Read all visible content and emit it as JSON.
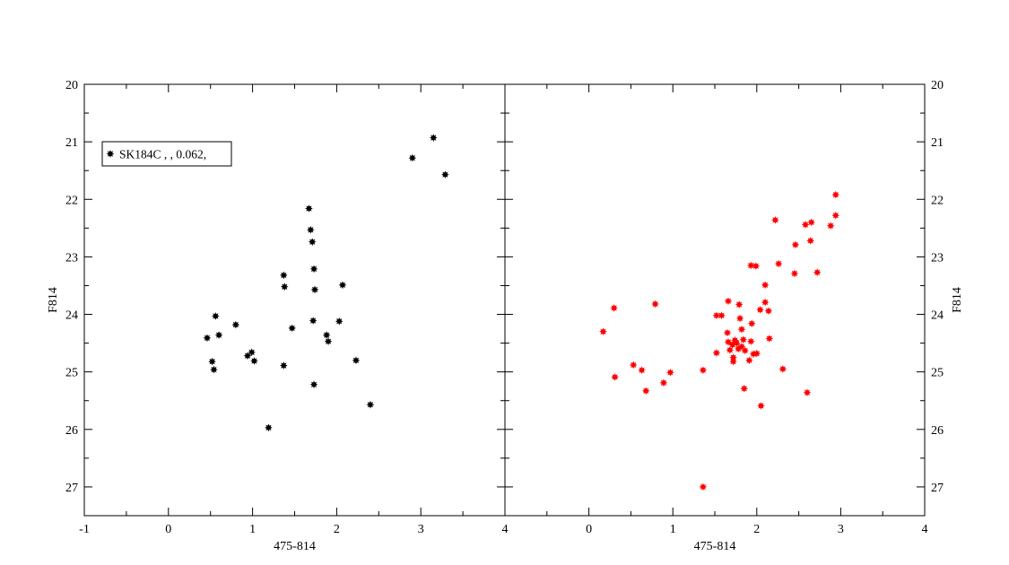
{
  "chart_data": [
    {
      "type": "scatter",
      "title": "",
      "xlabel": "475-814",
      "ylabel": "F814",
      "xlim": [
        -1,
        4
      ],
      "ylim": [
        27.5,
        20
      ],
      "y_inverted": true,
      "y_axis_side": "left",
      "grid": false,
      "x_ticks": [
        "-1",
        "0",
        "1",
        "2",
        "3",
        "4"
      ],
      "y_ticks": [
        "20",
        "21",
        "22",
        "23",
        "24",
        "25",
        "26",
        "27"
      ],
      "legend": {
        "placement": "top-left",
        "entries": [
          "SK184C ,   , 0.062,"
        ]
      },
      "series": [
        {
          "name": "SK184C ,   , 0.062,",
          "color": "#000000",
          "marker": "star",
          "points": [
            [
              3.15,
              20.93
            ],
            [
              2.9,
              21.28
            ],
            [
              3.29,
              21.57
            ],
            [
              1.67,
              22.16
            ],
            [
              1.69,
              22.53
            ],
            [
              1.71,
              22.74
            ],
            [
              1.37,
              23.32
            ],
            [
              1.73,
              23.21
            ],
            [
              1.38,
              23.52
            ],
            [
              1.74,
              23.57
            ],
            [
              2.07,
              23.49
            ],
            [
              0.56,
              24.03
            ],
            [
              0.8,
              24.18
            ],
            [
              0.6,
              24.36
            ],
            [
              0.46,
              24.41
            ],
            [
              1.47,
              24.24
            ],
            [
              1.72,
              24.11
            ],
            [
              2.03,
              24.12
            ],
            [
              1.88,
              24.36
            ],
            [
              1.9,
              24.47
            ],
            [
              0.99,
              24.66
            ],
            [
              0.94,
              24.72
            ],
            [
              1.02,
              24.81
            ],
            [
              0.52,
              24.82
            ],
            [
              0.54,
              24.96
            ],
            [
              1.37,
              24.89
            ],
            [
              2.23,
              24.8
            ],
            [
              1.73,
              25.22
            ],
            [
              2.4,
              25.57
            ],
            [
              1.19,
              25.97
            ]
          ]
        }
      ]
    },
    {
      "type": "scatter",
      "title": "",
      "xlabel": "475-814",
      "ylabel": "F814",
      "xlim": [
        -1,
        4
      ],
      "ylim": [
        27.5,
        20
      ],
      "y_inverted": true,
      "y_axis_side": "right",
      "grid": false,
      "x_ticks": [
        "0",
        "1",
        "2",
        "3",
        "4"
      ],
      "y_ticks": [
        "20",
        "21",
        "22",
        "23",
        "24",
        "25",
        "26",
        "27"
      ],
      "series": [
        {
          "color": "#ff0000",
          "marker": "star",
          "points": [
            [
              2.94,
              21.92
            ],
            [
              2.94,
              22.28
            ],
            [
              2.22,
              22.36
            ],
            [
              2.58,
              22.44
            ],
            [
              2.65,
              22.4
            ],
            [
              2.88,
              22.46
            ],
            [
              2.64,
              22.72
            ],
            [
              2.46,
              22.79
            ],
            [
              1.93,
              23.15
            ],
            [
              1.99,
              23.16
            ],
            [
              2.26,
              23.12
            ],
            [
              2.72,
              23.27
            ],
            [
              2.45,
              23.29
            ],
            [
              2.1,
              23.49
            ],
            [
              0.3,
              23.89
            ],
            [
              0.79,
              23.82
            ],
            [
              1.66,
              23.77
            ],
            [
              2.1,
              23.79
            ],
            [
              2.04,
              23.92
            ],
            [
              2.14,
              23.94
            ],
            [
              1.52,
              24.02
            ],
            [
              1.58,
              24.02
            ],
            [
              1.79,
              23.83
            ],
            [
              1.8,
              24.07
            ],
            [
              1.94,
              24.16
            ],
            [
              0.17,
              24.3
            ],
            [
              1.65,
              24.32
            ],
            [
              1.82,
              24.26
            ],
            [
              2.15,
              24.42
            ],
            [
              1.74,
              24.45
            ],
            [
              1.66,
              24.48
            ],
            [
              1.71,
              24.53
            ],
            [
              1.76,
              24.5
            ],
            [
              1.84,
              24.44
            ],
            [
              1.93,
              24.47
            ],
            [
              1.82,
              24.56
            ],
            [
              1.78,
              24.6
            ],
            [
              1.68,
              24.62
            ],
            [
              1.86,
              24.63
            ],
            [
              1.52,
              24.67
            ],
            [
              1.96,
              24.69
            ],
            [
              2.0,
              24.68
            ],
            [
              1.72,
              24.75
            ],
            [
              1.72,
              24.82
            ],
            [
              1.91,
              24.8
            ],
            [
              0.53,
              24.88
            ],
            [
              0.63,
              24.97
            ],
            [
              0.97,
              25.01
            ],
            [
              1.36,
              24.97
            ],
            [
              2.31,
              24.95
            ],
            [
              0.31,
              25.09
            ],
            [
              0.89,
              25.19
            ],
            [
              0.68,
              25.33
            ],
            [
              1.85,
              25.29
            ],
            [
              2.6,
              25.36
            ],
            [
              2.05,
              25.59
            ],
            [
              1.36,
              27.0
            ]
          ]
        }
      ]
    }
  ]
}
